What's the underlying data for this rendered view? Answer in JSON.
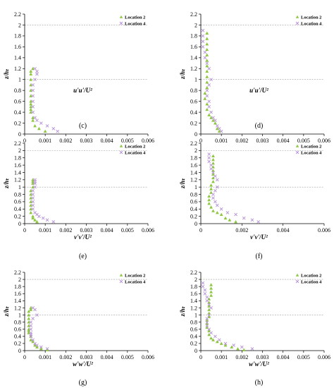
{
  "chart_data": [
    {
      "type": "scatter",
      "panel_label": "(c)",
      "xlabel": "u'u'/U²",
      "ylabel": "z/hₜ",
      "xlim": [
        0,
        0.006
      ],
      "ylim": [
        0,
        2.2
      ],
      "xticks": [
        "0",
        "0.001",
        "0.002",
        "0.003",
        "0.004",
        "0.005",
        "0.006"
      ],
      "yticks": [
        "0",
        "0.2",
        "0.4",
        "0.6",
        "0.8",
        "1",
        "1.2",
        "1.4",
        "1.6",
        "1.8",
        "2",
        "2.2"
      ],
      "hlines": [
        1,
        2
      ],
      "legend_position": "top-right",
      "series": [
        {
          "name": "Location 2",
          "marker": "triangle",
          "color": "#8dc63f",
          "x": [
            0.0004,
            0.0003,
            0.0003,
            0.0003,
            0.0003,
            0.0003,
            0.0003,
            0.0003,
            0.0003,
            0.0003,
            0.0003,
            0.0003,
            0.0004,
            0.0004,
            0.0005,
            0.0007,
            0.001
          ],
          "y": [
            1.2,
            1.15,
            1.1,
            1.0,
            0.9,
            0.8,
            0.7,
            0.6,
            0.55,
            0.5,
            0.45,
            0.4,
            0.3,
            0.25,
            0.15,
            0.1,
            0.05
          ]
        },
        {
          "name": "Location 4",
          "marker": "cross",
          "color": "#b58fd6",
          "x": [
            0.0005,
            0.0006,
            0.0006,
            0.0005,
            0.0004,
            0.0004,
            0.0004,
            0.0004,
            0.0004,
            0.0004,
            0.0005,
            0.0006,
            0.0008,
            0.0011,
            0.0014,
            0.0016
          ],
          "y": [
            1.2,
            1.15,
            1.1,
            1.0,
            0.9,
            0.8,
            0.7,
            0.6,
            0.5,
            0.4,
            0.3,
            0.25,
            0.2,
            0.15,
            0.1,
            0.05
          ]
        }
      ]
    },
    {
      "type": "scatter",
      "panel_label": "(d)",
      "xlabel": "u'u'/U²",
      "ylabel": "z/hₜ",
      "xlim": [
        0,
        0.006
      ],
      "ylim": [
        0,
        2.2
      ],
      "xticks": [
        "0",
        "0.001",
        "0.002",
        "0.003",
        "0.004",
        "0.005",
        "0.006"
      ],
      "yticks": [
        "0",
        "0.2",
        "0.4",
        "0.6",
        "0.8",
        "1",
        "1.2",
        "1.4",
        "1.6",
        "1.8",
        "2",
        "2.2"
      ],
      "hlines": [
        1,
        2
      ],
      "legend_position": "top-right",
      "series": [
        {
          "name": "Location 2",
          "marker": "triangle",
          "color": "#8dc63f",
          "x": [
            0.0003,
            0.0003,
            0.0003,
            0.0003,
            0.0003,
            0.0003,
            0.0003,
            0.0003,
            0.0003,
            0.0003,
            0.0003,
            0.0002,
            0.0002,
            0.0003,
            0.0003,
            0.0004,
            0.0005,
            0.0006,
            0.0007,
            0.0008,
            0.0009
          ],
          "y": [
            1.85,
            1.75,
            1.65,
            1.55,
            1.45,
            1.35,
            1.25,
            1.15,
            1.05,
            0.95,
            0.85,
            0.75,
            0.65,
            0.55,
            0.45,
            0.35,
            0.3,
            0.25,
            0.2,
            0.1,
            0.05
          ]
        },
        {
          "name": "Location 4",
          "marker": "cross",
          "color": "#b58fd6",
          "x": [
            0.0001,
            0.0001,
            0.0001,
            0.0001,
            0.0002,
            0.0002,
            0.0003,
            0.0004,
            0.0005,
            0.0004,
            0.0003,
            0.0003,
            0.0004,
            0.0004,
            0.0005,
            0.0006,
            0.0007,
            0.0008,
            0.0009,
            0.001
          ],
          "y": [
            1.9,
            1.8,
            1.7,
            1.6,
            1.5,
            1.4,
            1.3,
            1.2,
            1.0,
            0.9,
            0.8,
            0.7,
            0.6,
            0.5,
            0.4,
            0.3,
            0.25,
            0.15,
            0.1,
            0.05
          ]
        }
      ]
    },
    {
      "type": "scatter",
      "panel_label": "(e)",
      "xlabel": "v'v'/U²",
      "ylabel": "z/hₜ",
      "xlim": [
        0,
        0.006
      ],
      "ylim": [
        0,
        2.2
      ],
      "xticks": [
        "0",
        "0.001",
        "0.002",
        "0.003",
        "0.004",
        "0.005",
        "0.006"
      ],
      "yticks": [
        "0",
        "0.2",
        "0.4",
        "0.6",
        "0.8",
        "1",
        "1.2",
        "1.4",
        "1.6",
        "1.8",
        "2",
        "2.2"
      ],
      "hlines": [
        1,
        2
      ],
      "legend_position": "top-right",
      "series": [
        {
          "name": "Location 2",
          "marker": "triangle",
          "color": "#8dc63f",
          "x": [
            0.0004,
            0.0004,
            0.0004,
            0.0004,
            0.0003,
            0.0003,
            0.0003,
            0.0003,
            0.0003,
            0.0003,
            0.0003,
            0.0004,
            0.0004,
            0.0005,
            0.0006
          ],
          "y": [
            1.2,
            1.15,
            1.1,
            1.0,
            0.9,
            0.8,
            0.7,
            0.6,
            0.5,
            0.4,
            0.3,
            0.2,
            0.15,
            0.1,
            0.05
          ]
        },
        {
          "name": "Location 4",
          "marker": "cross",
          "color": "#b58fd6",
          "x": [
            0.0005,
            0.0005,
            0.0005,
            0.0005,
            0.0004,
            0.0004,
            0.0004,
            0.0004,
            0.0004,
            0.0004,
            0.0005,
            0.0006,
            0.0007,
            0.0009,
            0.0011,
            0.0014
          ],
          "y": [
            1.2,
            1.15,
            1.1,
            1.0,
            0.9,
            0.8,
            0.7,
            0.6,
            0.5,
            0.4,
            0.3,
            0.25,
            0.2,
            0.15,
            0.1,
            0.05
          ]
        }
      ]
    },
    {
      "type": "scatter",
      "panel_label": "(f)",
      "xlabel": "v'v'/U²",
      "ylabel": "z/hₜ",
      "xlim": [
        0,
        0.006
      ],
      "ylim": [
        0,
        2.2
      ],
      "xticks": [
        "0",
        "0.002",
        "0.004",
        "0.006"
      ],
      "yticks": [
        "0",
        "0.2",
        "0.4",
        "0.6",
        "0.8",
        "1",
        "1.2",
        "1.4",
        "1.6",
        "1.8",
        "2",
        "2.2"
      ],
      "hlines": [
        1,
        2
      ],
      "legend_position": "top-right",
      "series": [
        {
          "name": "Location 2",
          "marker": "triangle",
          "color": "#8dc63f",
          "x": [
            0.0006,
            0.0006,
            0.0006,
            0.0006,
            0.0006,
            0.0006,
            0.0006,
            0.0006,
            0.0005,
            0.0005,
            0.0005,
            0.0004,
            0.0004,
            0.0004,
            0.0005,
            0.0006,
            0.0008,
            0.001,
            0.0012,
            0.0014,
            0.0017
          ],
          "y": [
            1.85,
            1.75,
            1.65,
            1.55,
            1.45,
            1.35,
            1.25,
            1.15,
            1.05,
            0.95,
            0.85,
            0.75,
            0.65,
            0.55,
            0.45,
            0.35,
            0.3,
            0.25,
            0.15,
            0.1,
            0.05
          ]
        },
        {
          "name": "Location 4",
          "marker": "cross",
          "color": "#b58fd6",
          "x": [
            0.0004,
            0.0004,
            0.0004,
            0.0005,
            0.0005,
            0.0006,
            0.0007,
            0.0008,
            0.0008,
            0.0007,
            0.0006,
            0.0006,
            0.0007,
            0.0008,
            0.001,
            0.0013,
            0.0017,
            0.0021,
            0.0025,
            0.0028
          ],
          "y": [
            1.9,
            1.8,
            1.7,
            1.6,
            1.5,
            1.4,
            1.3,
            1.2,
            1.0,
            0.9,
            0.8,
            0.7,
            0.6,
            0.5,
            0.4,
            0.3,
            0.25,
            0.15,
            0.1,
            0.05
          ]
        }
      ]
    },
    {
      "type": "scatter",
      "panel_label": "(g)",
      "xlabel": "w'w'/U²",
      "ylabel": "z/hₜ",
      "xlim": [
        0,
        0.006
      ],
      "ylim": [
        0,
        2.2
      ],
      "xticks": [
        "0",
        "0.001",
        "0.002",
        "0.003",
        "0.004",
        "0.005",
        "0.006"
      ],
      "yticks": [
        "0",
        "0.2",
        "0.4",
        "0.6",
        "0.8",
        "1",
        "1.2",
        "1.4",
        "1.6",
        "1.8",
        "2",
        "2.2"
      ],
      "hlines": [
        1,
        2
      ],
      "legend_position": "top-right",
      "series": [
        {
          "name": "Location 2",
          "marker": "triangle",
          "color": "#8dc63f",
          "x": [
            0.0003,
            0.0003,
            0.0002,
            0.0002,
            0.0002,
            0.0002,
            0.0002,
            0.0002,
            0.0002,
            0.0002,
            0.0003,
            0.0003,
            0.0004,
            0.0005,
            0.0006,
            0.0008,
            0.0011
          ],
          "y": [
            1.2,
            1.15,
            1.1,
            1.0,
            0.9,
            0.8,
            0.7,
            0.6,
            0.55,
            0.5,
            0.4,
            0.3,
            0.25,
            0.15,
            0.1,
            0.05,
            0.02
          ]
        },
        {
          "name": "Location 4",
          "marker": "cross",
          "color": "#b58fd6",
          "x": [
            0.0004,
            0.0005,
            0.0006,
            0.0004,
            0.0003,
            0.0003,
            0.0003,
            0.0003,
            0.0003,
            0.0003,
            0.0004,
            0.0005,
            0.0006,
            0.0008,
            0.0011
          ],
          "y": [
            1.2,
            1.15,
            1.0,
            0.9,
            0.8,
            0.7,
            0.6,
            0.5,
            0.45,
            0.4,
            0.3,
            0.2,
            0.15,
            0.1,
            0.05
          ]
        }
      ]
    },
    {
      "type": "scatter",
      "panel_label": "(h)",
      "xlabel": "w'w'/U²",
      "ylabel": "z/hₜ",
      "xlim": [
        0,
        0.006
      ],
      "ylim": [
        0,
        2.2
      ],
      "xticks": [
        "0",
        "0.001",
        "0.002",
        "0.003",
        "0.004",
        "0.005",
        "0.006"
      ],
      "yticks": [
        "0",
        "0.2",
        "0.4",
        "0.6",
        "0.8",
        "1",
        "1.2",
        "1.4",
        "1.6",
        "1.8",
        "2",
        "2.2"
      ],
      "hlines": [
        1,
        2
      ],
      "legend_position": "top-right",
      "series": [
        {
          "name": "Location 2",
          "marker": "triangle",
          "color": "#8dc63f",
          "x": [
            0.0005,
            0.0005,
            0.0005,
            0.0005,
            0.0004,
            0.0004,
            0.0004,
            0.0004,
            0.0004,
            0.0004,
            0.0003,
            0.0003,
            0.0003,
            0.0004,
            0.0004,
            0.0005,
            0.0006,
            0.0008,
            0.001,
            0.0012,
            0.0015,
            0.0018,
            0.0021
          ],
          "y": [
            1.85,
            1.75,
            1.65,
            1.55,
            1.45,
            1.35,
            1.25,
            1.15,
            1.05,
            0.95,
            0.85,
            0.75,
            0.65,
            0.55,
            0.45,
            0.35,
            0.3,
            0.25,
            0.2,
            0.15,
            0.1,
            0.05,
            0.02
          ]
        },
        {
          "name": "Location 4",
          "marker": "cross",
          "color": "#b58fd6",
          "x": [
            0.0001,
            0.0001,
            0.0002,
            0.0002,
            0.0003,
            0.0003,
            0.0004,
            0.0005,
            0.0004,
            0.0003,
            0.0003,
            0.0003,
            0.0004,
            0.0005,
            0.0007,
            0.0009,
            0.0012,
            0.0016,
            0.002,
            0.0025
          ],
          "y": [
            1.9,
            1.8,
            1.7,
            1.6,
            1.5,
            1.4,
            1.3,
            1.2,
            1.0,
            0.9,
            0.8,
            0.7,
            0.6,
            0.5,
            0.4,
            0.3,
            0.2,
            0.15,
            0.1,
            0.05
          ]
        }
      ]
    }
  ]
}
